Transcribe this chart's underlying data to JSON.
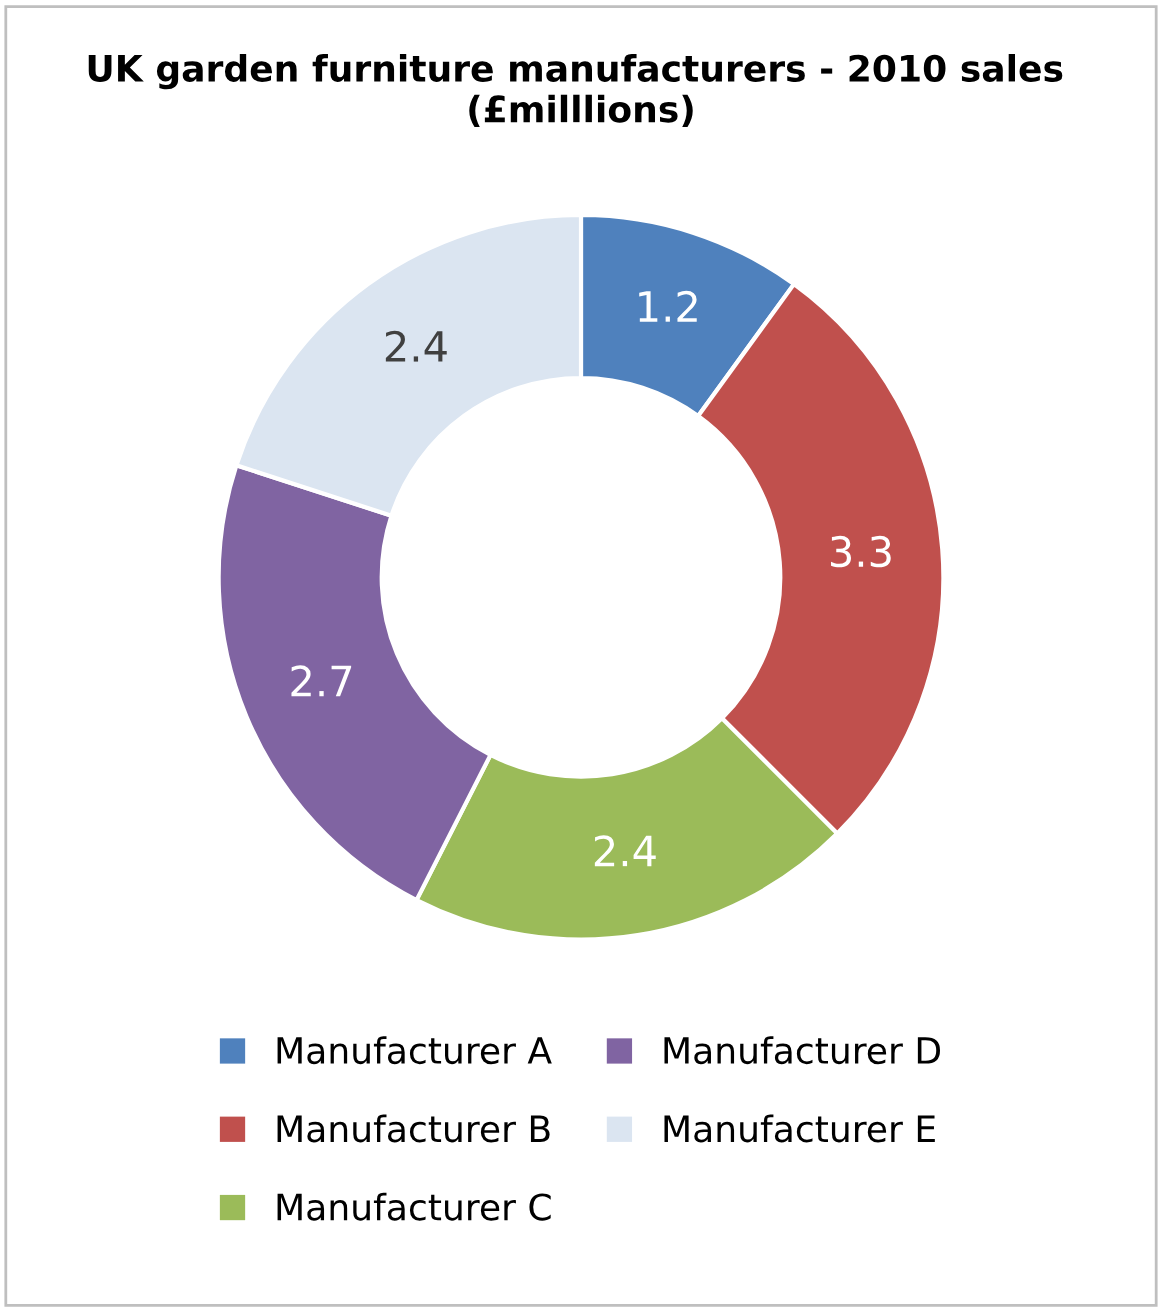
{
  "chart_data": {
    "type": "donut",
    "title": "UK garden furniture manufacturers - 2010 sales  (£milllions)",
    "categories": [
      "Manufacturer A",
      "Manufacturer B",
      "Manufacturer C",
      "Manufacturer D",
      "Manufacturer E"
    ],
    "values": [
      1.2,
      3.3,
      2.4,
      2.7,
      2.4
    ],
    "colors": [
      "#4f81bd",
      "#c0504d",
      "#9bbb59",
      "#8064a2",
      "#dbe5f1"
    ],
    "data_labels": true,
    "legend": "bottom"
  }
}
